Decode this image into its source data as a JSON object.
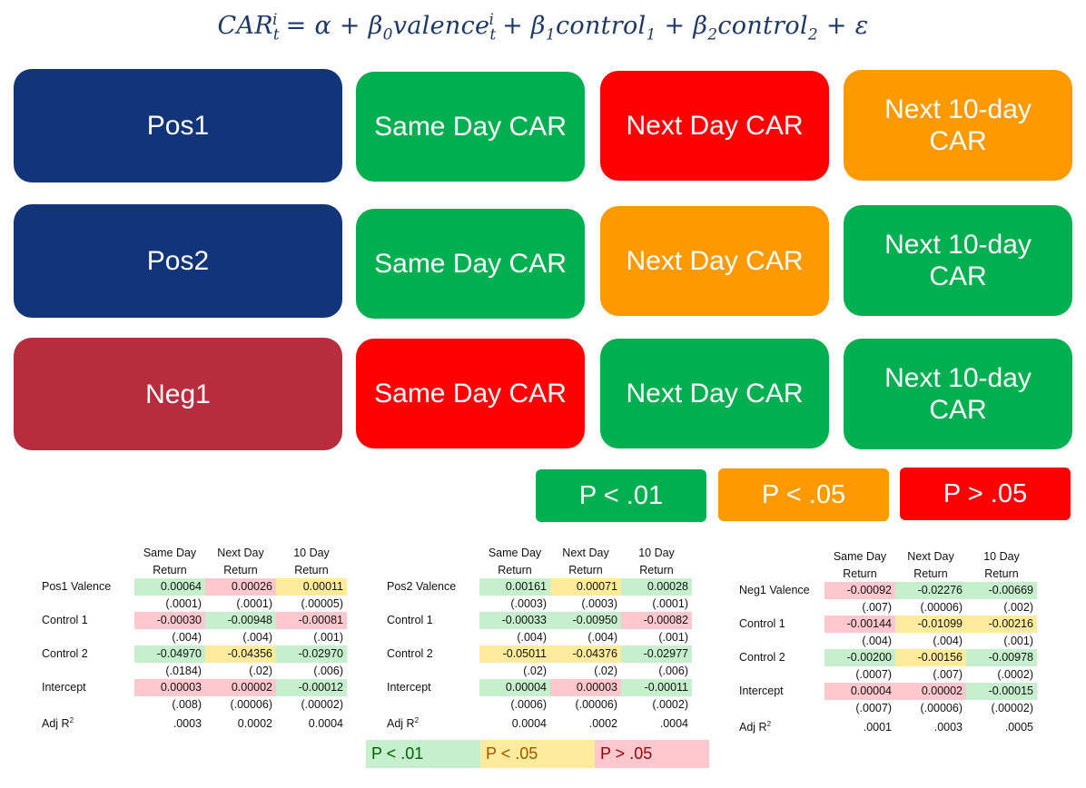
{
  "formula": {
    "lhs": "CAR",
    "lhs_sub": "t",
    "lhs_sup": "i",
    "eq": " = ",
    "alpha": "α",
    "plus": " + ",
    "b0": "β",
    "b0_sub": "0",
    "valence": "valence",
    "valence_sub": "t",
    "valence_sup": "i",
    "b1": "β",
    "b1_sub": "1",
    "control1": "control",
    "control1_sub": "1",
    "b2": "β",
    "b2_sub": "2",
    "control2": "control",
    "control2_sub": "2",
    "eps": "ε"
  },
  "grid": {
    "rows": [
      {
        "label": "Pos1",
        "label_color": "#12357a",
        "cells": [
          {
            "text": "Same Day CAR",
            "color": "#00b050"
          },
          {
            "text": "Next Day CAR",
            "color": "#ff0000"
          },
          {
            "text_line1": "Next 10-day",
            "text_line2": "CAR",
            "color": "#ff9900"
          }
        ]
      },
      {
        "label": "Pos2",
        "label_color": "#12357a",
        "cells": [
          {
            "text": "Same Day CAR",
            "color": "#00b050"
          },
          {
            "text": "Next Day CAR",
            "color": "#ff9900"
          },
          {
            "text_line1": "Next 10-day",
            "text_line2": "CAR",
            "color": "#00b050"
          }
        ]
      },
      {
        "label": "Neg1",
        "label_color": "#b72d3e",
        "cells": [
          {
            "text": "Same Day CAR",
            "color": "#ff0000"
          },
          {
            "text": "Next Day CAR",
            "color": "#00b050"
          },
          {
            "text_line1": "Next 10-day",
            "text_line2": "CAR",
            "color": "#00b050"
          }
        ]
      }
    ]
  },
  "legend": [
    {
      "text": "P < .01",
      "color": "#00b050"
    },
    {
      "text": "P < .05",
      "color": "#ff9900"
    },
    {
      "text": "P > .05",
      "color": "#ff0000"
    }
  ],
  "tables": [
    {
      "headers": [
        [
          "Same Day",
          "Return"
        ],
        [
          "Next Day",
          "Return"
        ],
        [
          "10 Day",
          "Return"
        ]
      ],
      "rows": [
        {
          "label": "Pos1 Valence",
          "values": [
            "0.00064",
            "0.00026",
            "0.00011"
          ],
          "shades": [
            "g",
            "r",
            "y"
          ],
          "se": [
            "(.0001)",
            "(.0001)",
            "(.00005)"
          ]
        },
        {
          "label": "Control 1",
          "values": [
            "-0.00030",
            "-0.00948",
            "-0.00081"
          ],
          "shades": [
            "r",
            "g",
            "r"
          ],
          "se": [
            "(.004)",
            "(.004)",
            "(.001)"
          ]
        },
        {
          "label": "Control 2",
          "values": [
            "-0.04970",
            "-0.04356",
            "-0.02970"
          ],
          "shades": [
            "g",
            "y",
            "g"
          ],
          "se": [
            "(.0184)",
            "(.02)",
            "(.006)"
          ]
        },
        {
          "label": "Intercept",
          "values": [
            "0.00003",
            "0.00002",
            "-0.00012"
          ],
          "shades": [
            "r",
            "r",
            "g"
          ],
          "se": [
            "(.008)",
            "(.00006)",
            "(.00002)"
          ]
        }
      ],
      "adj_label": "Adj R",
      "adj_sup": "2",
      "adj": [
        ".0003",
        "0.0002",
        "0.0004"
      ]
    },
    {
      "headers": [
        [
          "Same Day",
          "Return"
        ],
        [
          "Next Day",
          "Return"
        ],
        [
          "10 Day",
          "Return"
        ]
      ],
      "rows": [
        {
          "label": "Pos2 Valence",
          "values": [
            "0.00161",
            "0.00071",
            "0.00028"
          ],
          "shades": [
            "g",
            "y",
            "g"
          ],
          "se": [
            "(.0003)",
            "(.0003)",
            "(.0001)"
          ]
        },
        {
          "label": "Control 1",
          "values": [
            "-0.00033",
            "-0.00950",
            "-0.00082"
          ],
          "shades": [
            "g",
            "g",
            "r"
          ],
          "se": [
            "(.004)",
            "(.004)",
            "(.001)"
          ]
        },
        {
          "label": "Control 2",
          "values": [
            "-0.05011",
            "-0.04376",
            "-0.02977"
          ],
          "shades": [
            "y",
            "y",
            "g"
          ],
          "se": [
            "(.02)",
            "(.02)",
            "(.006)"
          ]
        },
        {
          "label": "Intercept",
          "values": [
            "0.00004",
            "0.00003",
            "-0.00011"
          ],
          "shades": [
            "g",
            "r",
            "g"
          ],
          "se": [
            "(.0006)",
            "(.00006)",
            "(.0002)"
          ]
        }
      ],
      "adj_label": "Adj R",
      "adj_sup": "2",
      "adj": [
        "0.0004",
        ".0002",
        ".0004"
      ]
    },
    {
      "headers": [
        [
          "Same Day",
          "Return"
        ],
        [
          "Next Day",
          "Return"
        ],
        [
          "10 Day",
          "Return"
        ]
      ],
      "rows": [
        {
          "label": "Neg1 Valence",
          "values": [
            "-0.00092",
            "-0.02276",
            "-0.00669"
          ],
          "shades": [
            "r",
            "g",
            "g"
          ],
          "se": [
            "(.007)",
            "(.00006)",
            "(.002)"
          ]
        },
        {
          "label": "Control 1",
          "values": [
            "-0.00144",
            "-0.01099",
            "-0.00216"
          ],
          "shades": [
            "r",
            "y",
            "y"
          ],
          "se": [
            "(.004)",
            "(.004)",
            "(.001)"
          ]
        },
        {
          "label": "Control 2",
          "values": [
            "-0.00200",
            "-0.00156",
            "-0.00978"
          ],
          "shades": [
            "g",
            "y",
            "g"
          ],
          "se": [
            "(.0007)",
            "(.007)",
            "(.0002)"
          ]
        },
        {
          "label": "Intercept",
          "values": [
            "0.00004",
            "0.00002",
            "-0.00015"
          ],
          "shades": [
            "r",
            "r",
            "g"
          ],
          "se": [
            "(.0007)",
            "(.00006)",
            "(.00002)"
          ]
        }
      ],
      "adj_label": "Adj R",
      "adj_sup": "2",
      "adj": [
        ".0001",
        ".0003",
        ".0005"
      ]
    }
  ],
  "shade_colors": {
    "g": "#c6efce",
    "y": "#ffeb9c",
    "r": "#ffc7ce"
  },
  "bottom_legend": [
    {
      "text": "P < .01",
      "bg": "#c6efce",
      "fg": "#006100"
    },
    {
      "text": "P < .05",
      "bg": "#ffeb9c",
      "fg": "#9c5700"
    },
    {
      "text": "P > .05",
      "bg": "#ffc7ce",
      "fg": "#9c0006"
    }
  ]
}
